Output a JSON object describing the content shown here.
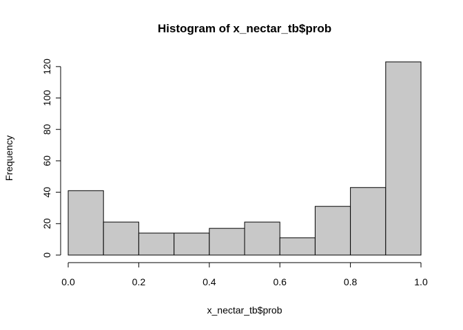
{
  "chart_data": {
    "type": "bar",
    "title": "Histogram of x_nectar_tb$prob",
    "xlabel": "x_nectar_tb$prob",
    "ylabel": "Frequency",
    "bin_edges": [
      0.0,
      0.1,
      0.2,
      0.3,
      0.4,
      0.5,
      0.6,
      0.7,
      0.8,
      0.9,
      1.0
    ],
    "values": [
      41,
      21,
      14,
      14,
      17,
      21,
      11,
      31,
      43,
      123
    ],
    "xlim": [
      0.0,
      1.0
    ],
    "ylim": [
      0,
      123
    ],
    "x_ticks": [
      "0.0",
      "0.2",
      "0.4",
      "0.6",
      "0.8",
      "1.0"
    ],
    "x_tick_values": [
      0.0,
      0.2,
      0.4,
      0.6,
      0.8,
      1.0
    ],
    "y_ticks": [
      "0",
      "20",
      "40",
      "60",
      "80",
      "100",
      "120"
    ],
    "y_tick_values": [
      0,
      20,
      40,
      60,
      80,
      100,
      120
    ],
    "bar_color": "#c8c8c8",
    "grid": false
  }
}
